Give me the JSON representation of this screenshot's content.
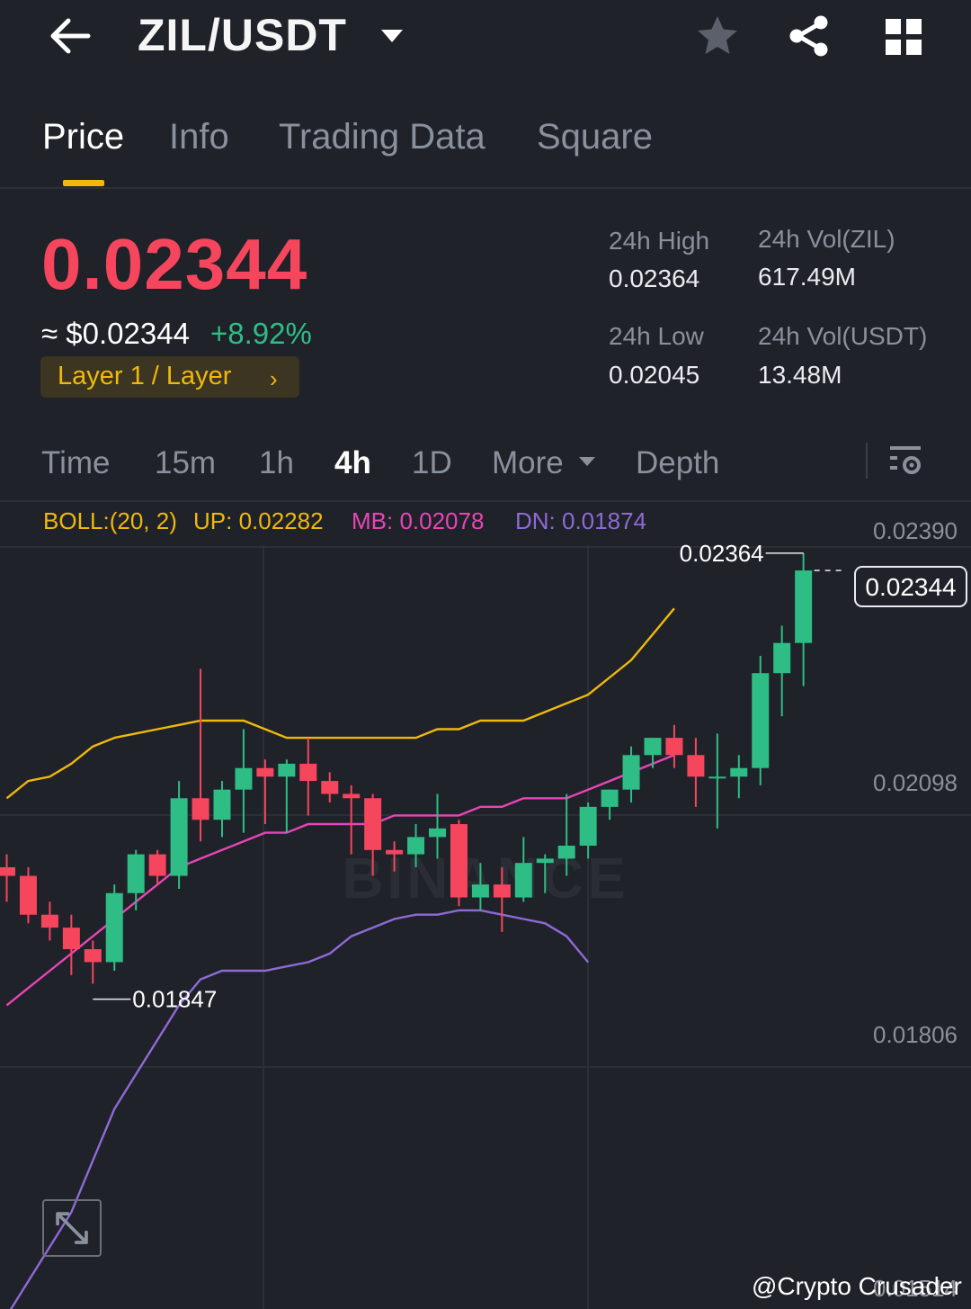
{
  "header": {
    "pair": "ZIL/USDT",
    "icons": [
      "back-arrow-icon",
      "dropdown-caret-icon",
      "star-icon",
      "share-icon",
      "grid-icon"
    ]
  },
  "tabs": [
    {
      "label": "Price",
      "active": true
    },
    {
      "label": "Info",
      "active": false
    },
    {
      "label": "Trading Data",
      "active": false
    },
    {
      "label": "Square",
      "active": false
    }
  ],
  "ticker": {
    "last_price": "0.02344",
    "usd_price": "≈ $0.02344",
    "change_pct": "+8.92%",
    "tag": "Layer 1 / Layer",
    "high_label": "24h High",
    "high_value": "0.02364",
    "low_label": "24h Low",
    "low_value": "0.02045",
    "vol_base_label": "24h Vol(ZIL)",
    "vol_base_value": "617.49M",
    "vol_quote_label": "24h Vol(USDT)",
    "vol_quote_value": "13.48M"
  },
  "intervals": [
    {
      "label": "Time",
      "active": false
    },
    {
      "label": "15m",
      "active": false
    },
    {
      "label": "1h",
      "active": false
    },
    {
      "label": "4h",
      "active": true
    },
    {
      "label": "1D",
      "active": false
    },
    {
      "label": "More",
      "active": false
    },
    {
      "label": "Depth",
      "active": false
    }
  ],
  "indicator": {
    "name": "BOLL:(20, 2)",
    "up": "UP: 0.02282",
    "mb": "MB: 0.02078",
    "dn": "DN: 0.01874"
  },
  "colors": {
    "up": "#2ebd85",
    "down": "#f6465d",
    "accent": "#f0b90b",
    "boll_up": "#f0b90b",
    "boll_mb": "#e845b8",
    "boll_dn": "#8f6ad8",
    "bg": "#1f2229"
  },
  "chart_data": {
    "type": "candlestick",
    "y_axis_labels": [
      "0.02390",
      "0.02098",
      "0.01806",
      "0.01514"
    ],
    "current_price": "0.02344",
    "high_marker": "0.02364",
    "low_marker": "0.01847",
    "candles": [
      {
        "o": 0.02,
        "h": 0.02015,
        "l": 0.0196,
        "c": 0.0199
      },
      {
        "o": 0.0199,
        "h": 0.02,
        "l": 0.01935,
        "c": 0.01945
      },
      {
        "o": 0.01945,
        "h": 0.0196,
        "l": 0.01915,
        "c": 0.0193
      },
      {
        "o": 0.0193,
        "h": 0.01945,
        "l": 0.01875,
        "c": 0.01905
      },
      {
        "o": 0.01905,
        "h": 0.01915,
        "l": 0.01865,
        "c": 0.0189
      },
      {
        "o": 0.0189,
        "h": 0.0198,
        "l": 0.0188,
        "c": 0.0197
      },
      {
        "o": 0.0197,
        "h": 0.0202,
        "l": 0.0195,
        "c": 0.02015
      },
      {
        "o": 0.02015,
        "h": 0.0202,
        "l": 0.0198,
        "c": 0.0199
      },
      {
        "o": 0.0199,
        "h": 0.021,
        "l": 0.01975,
        "c": 0.0208
      },
      {
        "o": 0.0208,
        "h": 0.0223,
        "l": 0.0203,
        "c": 0.02055
      },
      {
        "o": 0.02055,
        "h": 0.021,
        "l": 0.02035,
        "c": 0.0209
      },
      {
        "o": 0.0209,
        "h": 0.0216,
        "l": 0.0204,
        "c": 0.02115
      },
      {
        "o": 0.02115,
        "h": 0.02125,
        "l": 0.0205,
        "c": 0.02105
      },
      {
        "o": 0.02105,
        "h": 0.02125,
        "l": 0.0204,
        "c": 0.0212
      },
      {
        "o": 0.0212,
        "h": 0.0215,
        "l": 0.0206,
        "c": 0.021
      },
      {
        "o": 0.021,
        "h": 0.0211,
        "l": 0.02075,
        "c": 0.02085
      },
      {
        "o": 0.02085,
        "h": 0.02095,
        "l": 0.02015,
        "c": 0.0208
      },
      {
        "o": 0.0208,
        "h": 0.02085,
        "l": 0.0199,
        "c": 0.0202
      },
      {
        "o": 0.0202,
        "h": 0.0203,
        "l": 0.01995,
        "c": 0.02015
      },
      {
        "o": 0.02015,
        "h": 0.0205,
        "l": 0.02,
        "c": 0.02035
      },
      {
        "o": 0.02035,
        "h": 0.02085,
        "l": 0.0201,
        "c": 0.02045
      },
      {
        "o": 0.0205,
        "h": 0.02055,
        "l": 0.01955,
        "c": 0.01965
      },
      {
        "o": 0.01965,
        "h": 0.02005,
        "l": 0.0195,
        "c": 0.0198
      },
      {
        "o": 0.0198,
        "h": 0.02,
        "l": 0.01925,
        "c": 0.01965
      },
      {
        "o": 0.01965,
        "h": 0.02035,
        "l": 0.0196,
        "c": 0.02005
      },
      {
        "o": 0.02005,
        "h": 0.02015,
        "l": 0.0197,
        "c": 0.0201
      },
      {
        "o": 0.0201,
        "h": 0.02085,
        "l": 0.0199,
        "c": 0.02025
      },
      {
        "o": 0.02025,
        "h": 0.02075,
        "l": 0.0201,
        "c": 0.0207
      },
      {
        "o": 0.0207,
        "h": 0.0209,
        "l": 0.02055,
        "c": 0.0209
      },
      {
        "o": 0.0209,
        "h": 0.0214,
        "l": 0.02075,
        "c": 0.0213
      },
      {
        "o": 0.0213,
        "h": 0.0215,
        "l": 0.02115,
        "c": 0.0215
      },
      {
        "o": 0.0215,
        "h": 0.02165,
        "l": 0.02115,
        "c": 0.0213
      },
      {
        "o": 0.0213,
        "h": 0.0215,
        "l": 0.0207,
        "c": 0.02105
      },
      {
        "o": 0.02105,
        "h": 0.02155,
        "l": 0.02045,
        "c": 0.02105
      },
      {
        "o": 0.02105,
        "h": 0.0213,
        "l": 0.0208,
        "c": 0.02115
      },
      {
        "o": 0.02115,
        "h": 0.02245,
        "l": 0.02095,
        "c": 0.02225
      },
      {
        "o": 0.02225,
        "h": 0.0228,
        "l": 0.02175,
        "c": 0.0226
      },
      {
        "o": 0.0226,
        "h": 0.02364,
        "l": 0.0221,
        "c": 0.02344
      }
    ],
    "boll_up": [
      0.0208,
      0.021,
      0.02105,
      0.0212,
      0.0214,
      0.0215,
      0.02155,
      0.0216,
      0.02165,
      0.0217,
      0.0217,
      0.0217,
      0.0216,
      0.0215,
      0.0215,
      0.0215,
      0.0215,
      0.0215,
      0.0215,
      0.0215,
      0.0216,
      0.0216,
      0.0217,
      0.0217,
      0.0217,
      0.0218,
      0.0219,
      0.022,
      0.0222,
      0.0224,
      0.0227,
      0.023
    ],
    "boll_mb": [
      0.0184,
      0.0186,
      0.0188,
      0.019,
      0.0192,
      0.0194,
      0.0196,
      0.0198,
      0.02,
      0.0201,
      0.0202,
      0.0203,
      0.0204,
      0.0204,
      0.0205,
      0.0205,
      0.0205,
      0.0205,
      0.0206,
      0.0206,
      0.0206,
      0.0206,
      0.0207,
      0.0207,
      0.0208,
      0.0208,
      0.0208,
      0.0209,
      0.021,
      0.0211,
      0.0212,
      0.0213
    ],
    "boll_dn": [
      0.0148,
      0.0152,
      0.0156,
      0.016,
      0.0166,
      0.0172,
      0.0176,
      0.018,
      0.0184,
      0.0187,
      0.0188,
      0.0188,
      0.0188,
      0.01885,
      0.0189,
      0.019,
      0.0192,
      0.0193,
      0.0194,
      0.01945,
      0.01945,
      0.0195,
      0.0195,
      0.01945,
      0.0194,
      0.01935,
      0.0192,
      0.0189
    ]
  },
  "watermark": "BINANCE",
  "credit": "@Crypto Crusader"
}
